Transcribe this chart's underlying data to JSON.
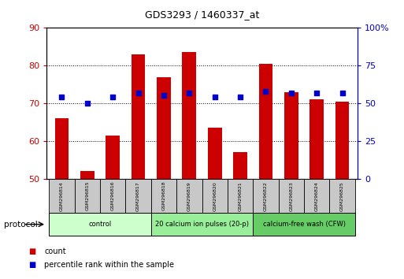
{
  "title": "GDS3293 / 1460337_at",
  "samples": [
    "GSM296814",
    "GSM296815",
    "GSM296816",
    "GSM296817",
    "GSM296818",
    "GSM296819",
    "GSM296820",
    "GSM296821",
    "GSM296822",
    "GSM296823",
    "GSM296824",
    "GSM296825"
  ],
  "counts": [
    66,
    52,
    61.5,
    83,
    77,
    83.5,
    63.5,
    57,
    80.5,
    73,
    71,
    70.5
  ],
  "percentile_ranks_pct": [
    54,
    50,
    54,
    57,
    55,
    57,
    54,
    54,
    58,
    57,
    57,
    57
  ],
  "ylim_left": [
    50,
    90
  ],
  "ylim_right": [
    0,
    100
  ],
  "yticks_left": [
    50,
    60,
    70,
    80,
    90
  ],
  "yticks_right": [
    0,
    25,
    50,
    75,
    100
  ],
  "bar_color": "#cc0000",
  "dot_color": "#0000cc",
  "bar_bottom": 50,
  "protocol_groups": [
    {
      "label": "control",
      "start": 0,
      "end": 3,
      "color": "#ccffcc"
    },
    {
      "label": "20 calcium ion pulses (20-p)",
      "start": 4,
      "end": 7,
      "color": "#99ee99"
    },
    {
      "label": "calcium-free wash (CFW)",
      "start": 8,
      "end": 11,
      "color": "#66cc66"
    }
  ],
  "legend_items": [
    {
      "label": "count",
      "color": "#cc0000"
    },
    {
      "label": "percentile rank within the sample",
      "color": "#0000cc"
    }
  ],
  "protocol_label": "protocol",
  "background_color": "#ffffff",
  "tick_label_color_left": "#cc0000",
  "tick_label_color_right": "#0000cc",
  "bar_width": 0.55,
  "figsize": [
    5.13,
    3.54
  ],
  "dpi": 100
}
